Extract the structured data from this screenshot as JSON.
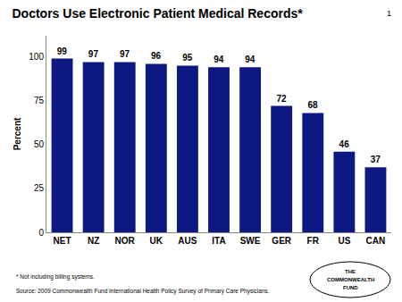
{
  "chart_data": {
    "type": "bar",
    "title": "Doctors Use Electronic Patient Medical Records*",
    "ylabel": "Percent",
    "categories": [
      "NET",
      "NZ",
      "NOR",
      "UK",
      "AUS",
      "ITA",
      "SWE",
      "GER",
      "FR",
      "US",
      "CAN"
    ],
    "values": [
      99,
      97,
      97,
      96,
      95,
      94,
      94,
      72,
      68,
      46,
      37
    ],
    "color": "#0d1882",
    "ylim": [
      0,
      112
    ],
    "yticks": [
      0,
      25,
      50,
      75,
      100
    ],
    "grid": false,
    "data_labels": true,
    "annotations": [
      "1",
      "* Not including billing systems.",
      "Source: 2009 Commonwealth Fund International Health Policy Survey of Primary Care Physicians.",
      "THE",
      "COMMONWEALTH",
      "FUND"
    ]
  }
}
